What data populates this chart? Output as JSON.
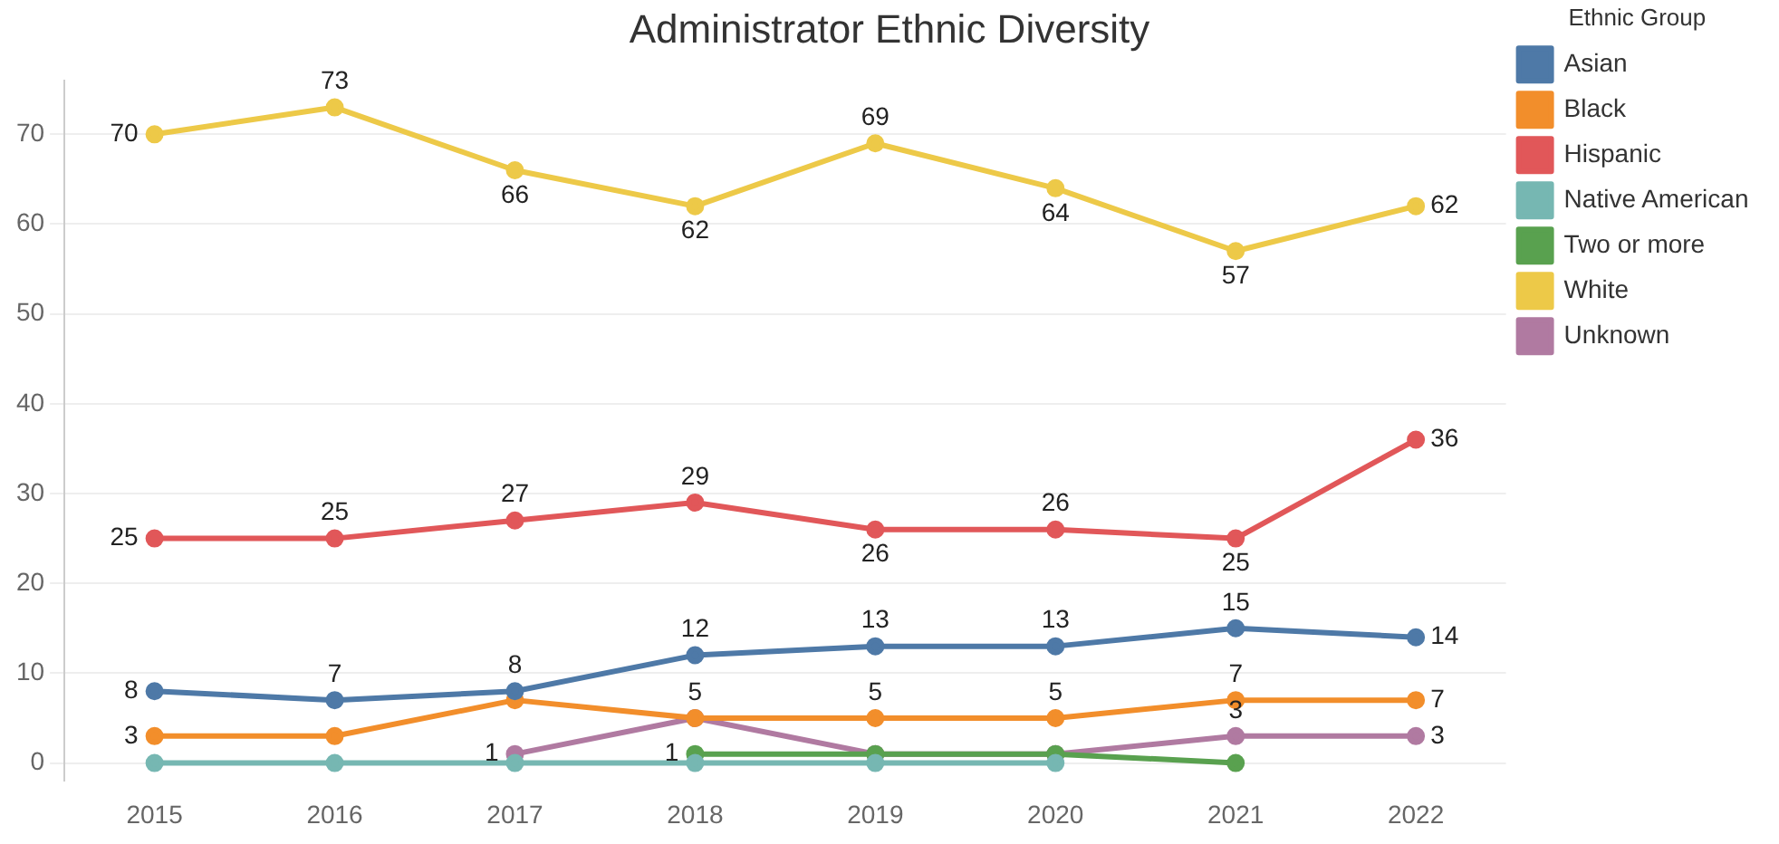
{
  "chart_data": {
    "type": "line",
    "title": "Administrator Ethnic Diversity",
    "legend_title": "Ethnic Group",
    "categories": [
      "2015",
      "2016",
      "2017",
      "2018",
      "2019",
      "2020",
      "2021",
      "2022"
    ],
    "series": [
      {
        "name": "Asian",
        "color": "#4e79a7",
        "values": [
          8,
          7,
          8,
          12,
          13,
          13,
          15,
          14
        ],
        "value_labels": [
          "8",
          "7",
          "8",
          "12",
          "13",
          "13",
          "15",
          "14"
        ]
      },
      {
        "name": "Black",
        "color": "#f28e2b",
        "values": [
          3,
          3,
          7,
          5,
          5,
          5,
          7,
          7
        ],
        "value_labels": [
          "3",
          null,
          null,
          "5",
          "5",
          "5",
          "7",
          "7"
        ]
      },
      {
        "name": "Hispanic",
        "color": "#e15759",
        "values": [
          25,
          25,
          27,
          29,
          26,
          26,
          25,
          36
        ],
        "value_labels": [
          "25",
          "25",
          "27",
          "29",
          "26",
          "26",
          "25",
          "36"
        ]
      },
      {
        "name": "Native American",
        "color": "#76b7b2",
        "values": [
          0,
          0,
          0,
          0,
          0,
          0,
          null,
          null
        ],
        "value_labels": [
          null,
          null,
          null,
          null,
          null,
          null,
          null,
          null
        ]
      },
      {
        "name": "Two or more",
        "color": "#59a14f",
        "values": [
          null,
          null,
          null,
          1,
          1,
          1,
          0,
          null
        ],
        "value_labels": [
          null,
          null,
          null,
          "1",
          null,
          null,
          null,
          null
        ]
      },
      {
        "name": "White",
        "color": "#edc948",
        "values": [
          70,
          73,
          66,
          62,
          69,
          64,
          57,
          62
        ],
        "value_labels": [
          "70",
          "73",
          "66",
          "62",
          "69",
          "64",
          "57",
          "62"
        ]
      },
      {
        "name": "Unknown",
        "color": "#b07aa1",
        "values": [
          null,
          null,
          1,
          5,
          1,
          1,
          3,
          3
        ],
        "value_labels": [
          null,
          null,
          "1",
          null,
          null,
          null,
          "3",
          "3"
        ]
      }
    ],
    "ylim": [
      -2,
      76
    ],
    "yticks": [
      0,
      10,
      20,
      30,
      40,
      50,
      60,
      70
    ],
    "grid": "y",
    "legend": "right",
    "marker": "circle",
    "line_style": "solid"
  }
}
